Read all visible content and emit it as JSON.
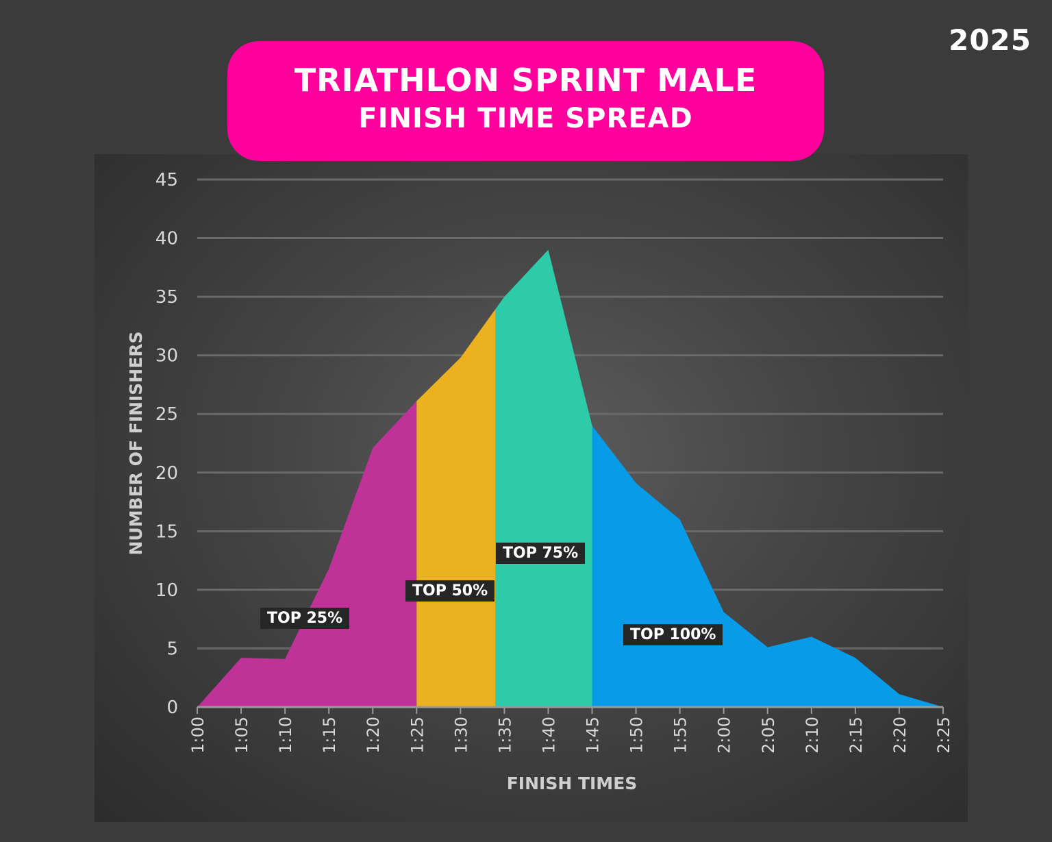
{
  "year": "2025",
  "title_line1": "TRIATHLON SPRINT MALE",
  "title_line2": "FINISH TIME SPREAD",
  "chart_data": {
    "type": "area",
    "title": "TRIATHLON SPRINT MALE FINISH TIME SPREAD",
    "xlabel": "FINISH TIMES",
    "ylabel": "NUMBER OF FINISHERS",
    "ylim": [
      0,
      45
    ],
    "yticks": [
      0,
      5,
      10,
      15,
      20,
      25,
      30,
      35,
      40,
      45
    ],
    "grid": true,
    "categories": [
      "1:00",
      "1:05",
      "1:10",
      "1:15",
      "1:20",
      "1:25",
      "1:30",
      "1:35",
      "1:40",
      "1:45",
      "1:50",
      "1:55",
      "2:00",
      "2:05",
      "2:10",
      "2:15",
      "2:20",
      "2:25"
    ],
    "values": [
      0,
      4.2,
      4.1,
      11.8,
      22.1,
      26.1,
      29.8,
      35,
      39,
      24,
      19.1,
      16,
      8.1,
      5.1,
      6,
      4.2,
      1.1,
      0
    ],
    "regions": [
      {
        "label": "TOP 25%",
        "from": "1:00",
        "to": "1:25",
        "color": "#bf3399"
      },
      {
        "label": "TOP 50%",
        "from": "1:25",
        "to": "1:34",
        "color": "#ebb11e"
      },
      {
        "label": "TOP 75%",
        "from": "1:34",
        "to": "1:45",
        "color": "#2ecba8"
      },
      {
        "label": "TOP 100%",
        "from": "1:45",
        "to": "2:25",
        "color": "#089ce8"
      }
    ]
  }
}
